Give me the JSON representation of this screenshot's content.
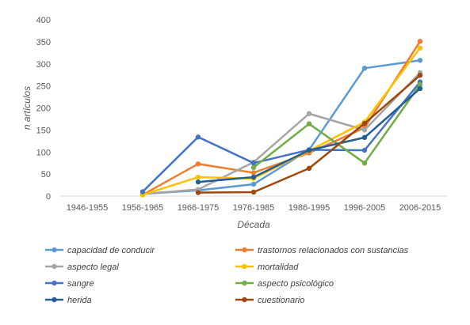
{
  "chart_data": {
    "type": "line",
    "xlabel": "Década",
    "ylabel": "n artículos",
    "ylim": [
      0,
      400
    ],
    "yticks": [
      0,
      50,
      100,
      150,
      200,
      250,
      300,
      350,
      400
    ],
    "grid": false,
    "legend_position": "bottom",
    "categories": [
      "1946-1955",
      "1956-1965",
      "1966-1975",
      "1976-1985",
      "1986-1995",
      "1996-2005",
      "2006-2015"
    ],
    "series": [
      {
        "name": "capacidad de conducir",
        "color": "#5B9BD5",
        "values": [
          null,
          5,
          13,
          27,
          105,
          290,
          308
        ]
      },
      {
        "name": "trastornos relacionados con sustancias",
        "color": "#ED7D31",
        "values": [
          null,
          3,
          73,
          53,
          98,
          155,
          351
        ]
      },
      {
        "name": "aspecto legal",
        "color": "#A5A5A5",
        "values": [
          null,
          5,
          15,
          77,
          187,
          150,
          280
        ]
      },
      {
        "name": "mortalidad",
        "color": "#FFC000",
        "values": [
          null,
          3,
          43,
          40,
          103,
          168,
          336
        ]
      },
      {
        "name": "sangre",
        "color": "#4472C4",
        "values": [
          null,
          10,
          134,
          75,
          105,
          104,
          259
        ]
      },
      {
        "name": "aspecto psicológico",
        "color": "#70AD47",
        "values": [
          null,
          null,
          null,
          65,
          164,
          75,
          253
        ]
      },
      {
        "name": "herida",
        "color": "#255E91",
        "values": [
          null,
          null,
          32,
          43,
          104,
          133,
          244
        ]
      },
      {
        "name": "cuestionario",
        "color": "#9E480E",
        "values": [
          null,
          null,
          8,
          9,
          63,
          165,
          274
        ]
      }
    ]
  }
}
